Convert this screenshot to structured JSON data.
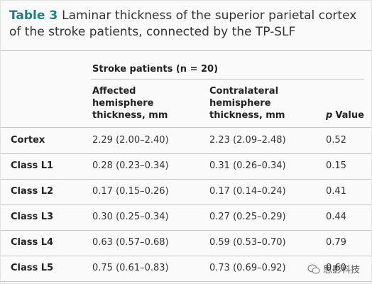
{
  "title": {
    "label": "Table 3",
    "text": "Laminar thickness of the superior parietal cortex of the stroke patients, connected by the TP-SLF"
  },
  "table": {
    "group_header": "Stroke patients (n = 20)",
    "columns": [
      {
        "lines": [
          "Affected",
          "hemisphere",
          "thickness, mm"
        ]
      },
      {
        "lines": [
          "Contralateral",
          "hemisphere",
          "thickness, mm"
        ]
      },
      {
        "symbol": "p",
        "text": "Value"
      }
    ],
    "rows": [
      [
        "Cortex",
        "2.29 (2.00–2.40)",
        "2.23 (2.09–2.48)",
        "0.52"
      ],
      [
        "Class L1",
        "0.28 (0.23–0.34)",
        "0.31 (0.26–0.34)",
        "0.15"
      ],
      [
        "Class L2",
        "0.17 (0.15–0.26)",
        "0.17 (0.14–0.24)",
        "0.41"
      ],
      [
        "Class L3",
        "0.30 (0.25–0.34)",
        "0.27 (0.25–0.29)",
        "0.44"
      ],
      [
        "Class L4",
        "0.63 (0.57–0.68)",
        "0.59 (0.53–0.70)",
        "0.79"
      ],
      [
        "Class L5",
        "0.75 (0.61–0.83)",
        "0.73 (0.69–0.92)",
        "0.60"
      ]
    ]
  },
  "watermark": "思影科技"
}
